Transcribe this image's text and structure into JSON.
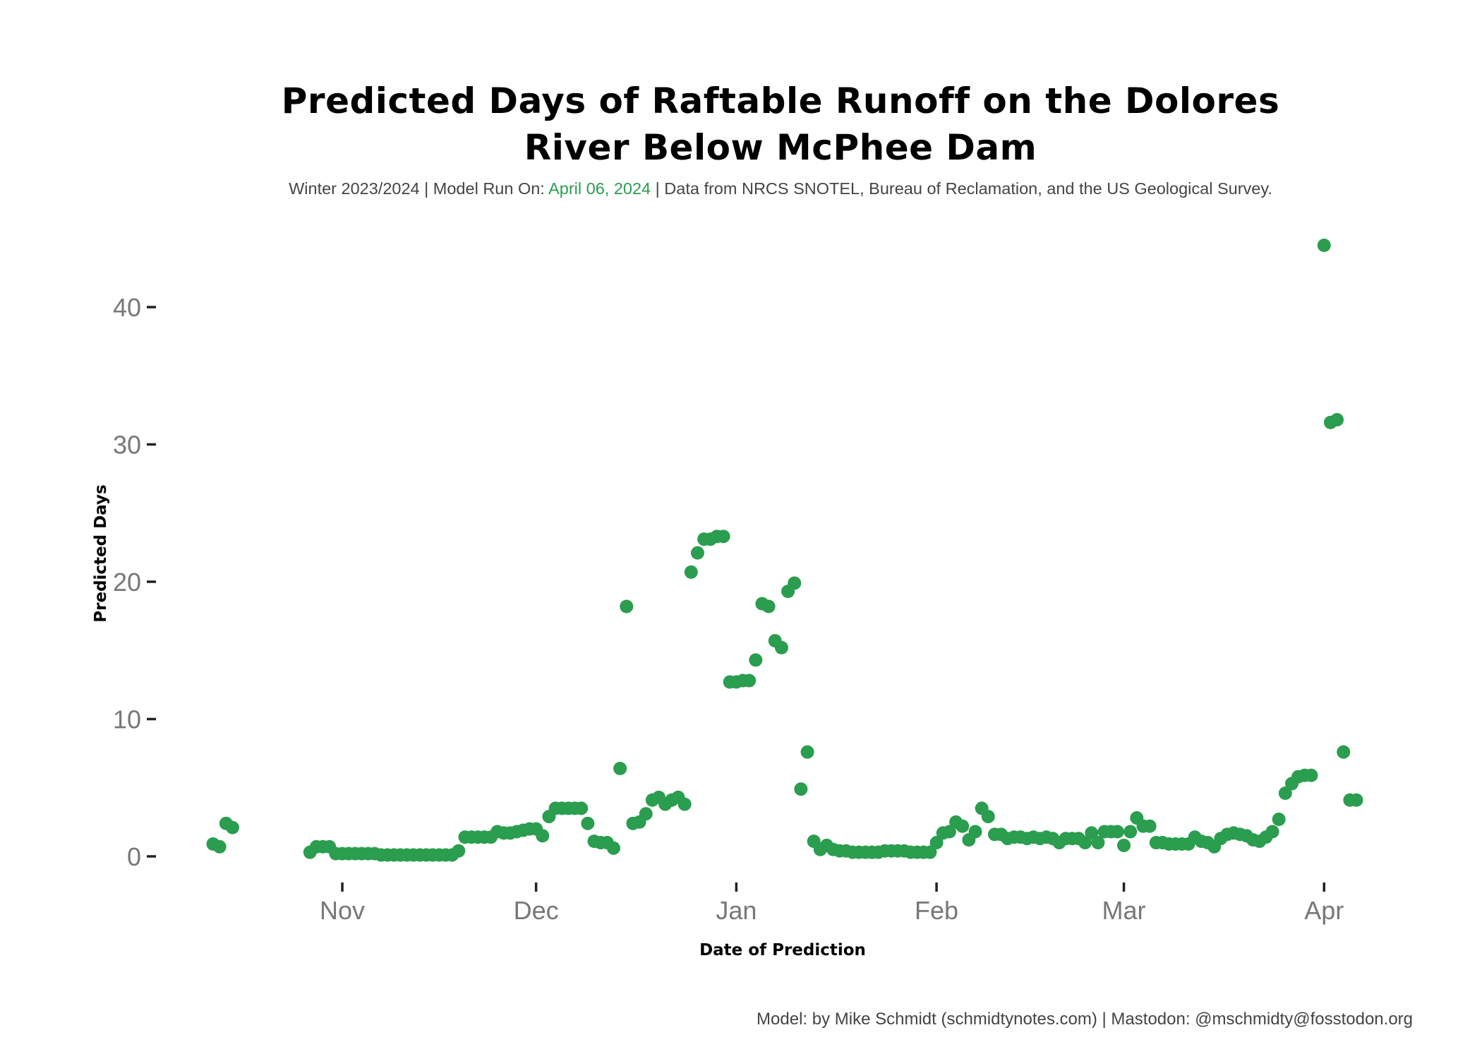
{
  "subtitle": {
    "prefix": "Winter 2023/2024 | Model Run On: ",
    "run_date": "April 06, 2024",
    "suffix": " | Data from NRCS SNOTEL, Bureau of Reclamation, and the US Geological Survey."
  },
  "caption": "Model: by Mike Schmidt (schmidtynotes.com) | Mastodon: @mschmidty@fosstodon.org",
  "colors": {
    "point": "#2a9d4e",
    "tick_text": "#777777",
    "tick_mark": "#222222"
  },
  "chart_data": {
    "type": "scatter",
    "title": "Predicted Days of Raftable Runoff on the Dolores River Below McPhee Dam",
    "title_lines": [
      "Predicted Days of Raftable Runoff on the Dolores",
      "River Below McPhee Dam"
    ],
    "xlabel": "Date of Prediction",
    "ylabel": "Predicted Days",
    "xlim": [
      "2023-10-12",
      "2024-04-06"
    ],
    "ylim": [
      -3,
      45
    ],
    "x_ticks": [
      {
        "date": "2023-11-01",
        "label": "Nov"
      },
      {
        "date": "2023-12-01",
        "label": "Dec"
      },
      {
        "date": "2024-01-01",
        "label": "Jan"
      },
      {
        "date": "2024-02-01",
        "label": "Feb"
      },
      {
        "date": "2024-03-01",
        "label": "Mar"
      },
      {
        "date": "2024-04-01",
        "label": "Apr"
      }
    ],
    "y_ticks": [
      0,
      10,
      20,
      30,
      40
    ],
    "grid": false,
    "legend": "none",
    "points": [
      {
        "x": "2023-10-12",
        "y": 0.9
      },
      {
        "x": "2023-10-13",
        "y": 0.7
      },
      {
        "x": "2023-10-14",
        "y": 2.4
      },
      {
        "x": "2023-10-15",
        "y": 2.1
      },
      {
        "x": "2023-10-27",
        "y": 0.3
      },
      {
        "x": "2023-10-28",
        "y": 0.7
      },
      {
        "x": "2023-10-29",
        "y": 0.7
      },
      {
        "x": "2023-10-30",
        "y": 0.7
      },
      {
        "x": "2023-10-31",
        "y": 0.2
      },
      {
        "x": "2023-11-01",
        "y": 0.2
      },
      {
        "x": "2023-11-02",
        "y": 0.2
      },
      {
        "x": "2023-11-03",
        "y": 0.2
      },
      {
        "x": "2023-11-04",
        "y": 0.2
      },
      {
        "x": "2023-11-05",
        "y": 0.2
      },
      {
        "x": "2023-11-06",
        "y": 0.2
      },
      {
        "x": "2023-11-07",
        "y": 0.1
      },
      {
        "x": "2023-11-08",
        "y": 0.1
      },
      {
        "x": "2023-11-09",
        "y": 0.1
      },
      {
        "x": "2023-11-10",
        "y": 0.1
      },
      {
        "x": "2023-11-11",
        "y": 0.1
      },
      {
        "x": "2023-11-12",
        "y": 0.1
      },
      {
        "x": "2023-11-13",
        "y": 0.1
      },
      {
        "x": "2023-11-14",
        "y": 0.1
      },
      {
        "x": "2023-11-15",
        "y": 0.1
      },
      {
        "x": "2023-11-16",
        "y": 0.1
      },
      {
        "x": "2023-11-17",
        "y": 0.1
      },
      {
        "x": "2023-11-18",
        "y": 0.1
      },
      {
        "x": "2023-11-19",
        "y": 0.4
      },
      {
        "x": "2023-11-20",
        "y": 1.4
      },
      {
        "x": "2023-11-21",
        "y": 1.4
      },
      {
        "x": "2023-11-22",
        "y": 1.4
      },
      {
        "x": "2023-11-23",
        "y": 1.4
      },
      {
        "x": "2023-11-24",
        "y": 1.4
      },
      {
        "x": "2023-11-25",
        "y": 1.8
      },
      {
        "x": "2023-11-26",
        "y": 1.7
      },
      {
        "x": "2023-11-27",
        "y": 1.7
      },
      {
        "x": "2023-11-28",
        "y": 1.8
      },
      {
        "x": "2023-11-29",
        "y": 1.9
      },
      {
        "x": "2023-11-30",
        "y": 2.0
      },
      {
        "x": "2023-12-01",
        "y": 2.0
      },
      {
        "x": "2023-12-02",
        "y": 1.5
      },
      {
        "x": "2023-12-03",
        "y": 2.9
      },
      {
        "x": "2023-12-04",
        "y": 3.5
      },
      {
        "x": "2023-12-05",
        "y": 3.5
      },
      {
        "x": "2023-12-06",
        "y": 3.5
      },
      {
        "x": "2023-12-07",
        "y": 3.5
      },
      {
        "x": "2023-12-08",
        "y": 3.5
      },
      {
        "x": "2023-12-09",
        "y": 2.4
      },
      {
        "x": "2023-12-10",
        "y": 1.1
      },
      {
        "x": "2023-12-11",
        "y": 1.0
      },
      {
        "x": "2023-12-12",
        "y": 1.0
      },
      {
        "x": "2023-12-13",
        "y": 0.6
      },
      {
        "x": "2023-12-14",
        "y": 6.4
      },
      {
        "x": "2023-12-15",
        "y": 18.2
      },
      {
        "x": "2023-12-16",
        "y": 2.4
      },
      {
        "x": "2023-12-17",
        "y": 2.5
      },
      {
        "x": "2023-12-18",
        "y": 3.1
      },
      {
        "x": "2023-12-19",
        "y": 4.1
      },
      {
        "x": "2023-12-20",
        "y": 4.3
      },
      {
        "x": "2023-12-21",
        "y": 3.8
      },
      {
        "x": "2023-12-22",
        "y": 4.1
      },
      {
        "x": "2023-12-23",
        "y": 4.3
      },
      {
        "x": "2023-12-24",
        "y": 3.8
      },
      {
        "x": "2023-12-25",
        "y": 20.7
      },
      {
        "x": "2023-12-26",
        "y": 22.1
      },
      {
        "x": "2023-12-27",
        "y": 23.1
      },
      {
        "x": "2023-12-28",
        "y": 23.1
      },
      {
        "x": "2023-12-29",
        "y": 23.3
      },
      {
        "x": "2023-12-30",
        "y": 23.3
      },
      {
        "x": "2023-12-31",
        "y": 12.7
      },
      {
        "x": "2024-01-01",
        "y": 12.7
      },
      {
        "x": "2024-01-02",
        "y": 12.8
      },
      {
        "x": "2024-01-03",
        "y": 12.8
      },
      {
        "x": "2024-01-04",
        "y": 14.3
      },
      {
        "x": "2024-01-05",
        "y": 18.4
      },
      {
        "x": "2024-01-06",
        "y": 18.2
      },
      {
        "x": "2024-01-07",
        "y": 15.7
      },
      {
        "x": "2024-01-08",
        "y": 15.2
      },
      {
        "x": "2024-01-09",
        "y": 19.3
      },
      {
        "x": "2024-01-10",
        "y": 19.9
      },
      {
        "x": "2024-01-11",
        "y": 4.9
      },
      {
        "x": "2024-01-12",
        "y": 7.6
      },
      {
        "x": "2024-01-13",
        "y": 1.1
      },
      {
        "x": "2024-01-14",
        "y": 0.5
      },
      {
        "x": "2024-01-15",
        "y": 0.8
      },
      {
        "x": "2024-01-16",
        "y": 0.5
      },
      {
        "x": "2024-01-17",
        "y": 0.4
      },
      {
        "x": "2024-01-18",
        "y": 0.4
      },
      {
        "x": "2024-01-19",
        "y": 0.3
      },
      {
        "x": "2024-01-20",
        "y": 0.3
      },
      {
        "x": "2024-01-21",
        "y": 0.3
      },
      {
        "x": "2024-01-22",
        "y": 0.3
      },
      {
        "x": "2024-01-23",
        "y": 0.3
      },
      {
        "x": "2024-01-24",
        "y": 0.4
      },
      {
        "x": "2024-01-25",
        "y": 0.4
      },
      {
        "x": "2024-01-26",
        "y": 0.4
      },
      {
        "x": "2024-01-27",
        "y": 0.4
      },
      {
        "x": "2024-01-28",
        "y": 0.3
      },
      {
        "x": "2024-01-29",
        "y": 0.3
      },
      {
        "x": "2024-01-30",
        "y": 0.3
      },
      {
        "x": "2024-01-31",
        "y": 0.3
      },
      {
        "x": "2024-02-01",
        "y": 1.0
      },
      {
        "x": "2024-02-02",
        "y": 1.7
      },
      {
        "x": "2024-02-03",
        "y": 1.8
      },
      {
        "x": "2024-02-04",
        "y": 2.5
      },
      {
        "x": "2024-02-05",
        "y": 2.2
      },
      {
        "x": "2024-02-06",
        "y": 1.2
      },
      {
        "x": "2024-02-07",
        "y": 1.8
      },
      {
        "x": "2024-02-08",
        "y": 3.5
      },
      {
        "x": "2024-02-09",
        "y": 2.9
      },
      {
        "x": "2024-02-10",
        "y": 1.6
      },
      {
        "x": "2024-02-11",
        "y": 1.6
      },
      {
        "x": "2024-02-12",
        "y": 1.3
      },
      {
        "x": "2024-02-13",
        "y": 1.4
      },
      {
        "x": "2024-02-14",
        "y": 1.4
      },
      {
        "x": "2024-02-15",
        "y": 1.3
      },
      {
        "x": "2024-02-16",
        "y": 1.4
      },
      {
        "x": "2024-02-17",
        "y": 1.3
      },
      {
        "x": "2024-02-18",
        "y": 1.4
      },
      {
        "x": "2024-02-19",
        "y": 1.3
      },
      {
        "x": "2024-02-20",
        "y": 1.0
      },
      {
        "x": "2024-02-21",
        "y": 1.3
      },
      {
        "x": "2024-02-22",
        "y": 1.3
      },
      {
        "x": "2024-02-23",
        "y": 1.3
      },
      {
        "x": "2024-02-24",
        "y": 1.0
      },
      {
        "x": "2024-02-25",
        "y": 1.7
      },
      {
        "x": "2024-02-26",
        "y": 1.0
      },
      {
        "x": "2024-02-27",
        "y": 1.8
      },
      {
        "x": "2024-02-28",
        "y": 1.8
      },
      {
        "x": "2024-02-29",
        "y": 1.8
      },
      {
        "x": "2024-03-01",
        "y": 0.8
      },
      {
        "x": "2024-03-02",
        "y": 1.8
      },
      {
        "x": "2024-03-03",
        "y": 2.8
      },
      {
        "x": "2024-03-04",
        "y": 2.2
      },
      {
        "x": "2024-03-05",
        "y": 2.2
      },
      {
        "x": "2024-03-06",
        "y": 1.0
      },
      {
        "x": "2024-03-07",
        "y": 1.0
      },
      {
        "x": "2024-03-08",
        "y": 0.9
      },
      {
        "x": "2024-03-09",
        "y": 0.9
      },
      {
        "x": "2024-03-10",
        "y": 0.9
      },
      {
        "x": "2024-03-11",
        "y": 0.9
      },
      {
        "x": "2024-03-12",
        "y": 1.4
      },
      {
        "x": "2024-03-13",
        "y": 1.1
      },
      {
        "x": "2024-03-14",
        "y": 1.0
      },
      {
        "x": "2024-03-15",
        "y": 0.7
      },
      {
        "x": "2024-03-16",
        "y": 1.3
      },
      {
        "x": "2024-03-17",
        "y": 1.6
      },
      {
        "x": "2024-03-18",
        "y": 1.7
      },
      {
        "x": "2024-03-19",
        "y": 1.6
      },
      {
        "x": "2024-03-20",
        "y": 1.5
      },
      {
        "x": "2024-03-21",
        "y": 1.2
      },
      {
        "x": "2024-03-22",
        "y": 1.1
      },
      {
        "x": "2024-03-23",
        "y": 1.4
      },
      {
        "x": "2024-03-24",
        "y": 1.8
      },
      {
        "x": "2024-03-25",
        "y": 2.7
      },
      {
        "x": "2024-03-26",
        "y": 4.6
      },
      {
        "x": "2024-03-27",
        "y": 5.3
      },
      {
        "x": "2024-03-28",
        "y": 5.8
      },
      {
        "x": "2024-03-29",
        "y": 5.9
      },
      {
        "x": "2024-03-30",
        "y": 5.9
      },
      {
        "x": "2024-04-01",
        "y": 44.5
      },
      {
        "x": "2024-04-02",
        "y": 31.6
      },
      {
        "x": "2024-04-03",
        "y": 31.8
      },
      {
        "x": "2024-04-04",
        "y": 7.6
      },
      {
        "x": "2024-04-05",
        "y": 4.1
      },
      {
        "x": "2024-04-06",
        "y": 4.1
      }
    ]
  }
}
